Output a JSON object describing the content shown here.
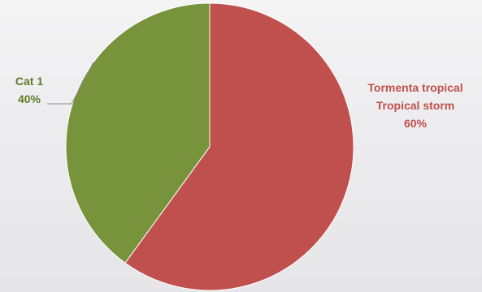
{
  "chart_data": {
    "type": "pie",
    "start_angle_deg": 0,
    "direction": "clockwise",
    "slices": [
      {
        "label_lines": [
          "Tormenta tropical",
          "Tropical storm"
        ],
        "value": 60,
        "value_label": "60%",
        "color": "#c0504d"
      },
      {
        "label_lines": [
          "Cat 1"
        ],
        "value": 40,
        "value_label": "40%",
        "color": "#77933c"
      }
    ],
    "legend": "none",
    "data_labels": "outside"
  }
}
